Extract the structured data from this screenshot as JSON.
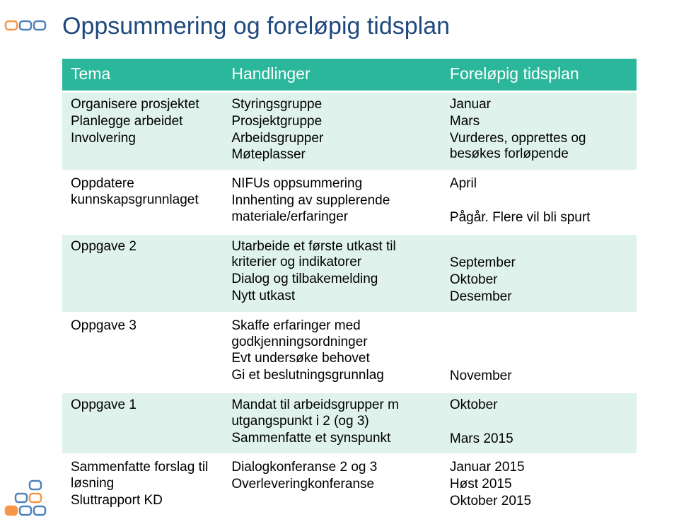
{
  "title": "Oppsummering og foreløpig tidsplan",
  "colors": {
    "title": "#1f497d",
    "header_bg": "#2bb79b",
    "header_fg": "#ffffff",
    "row_alt_bg": "#dff2ec",
    "row_bg": "#ffffff",
    "text": "#000000",
    "deco_orange": "#f79646",
    "deco_blue": "#4f81bd"
  },
  "headers": [
    "Tema",
    "Handlinger",
    "Foreløpig tidsplan"
  ],
  "rows": [
    {
      "alt": true,
      "tema": [
        "Organisere prosjektet",
        "Planlegge arbeidet",
        "Involvering"
      ],
      "handlinger": [
        "Styringsgruppe",
        "Prosjektgruppe",
        "Arbeidsgrupper",
        "Møteplasser"
      ],
      "tidsplan": [
        "Januar",
        "Mars",
        "Vurderes, opprettes og besøkes forløpende"
      ]
    },
    {
      "alt": false,
      "tema": [
        "Oppdatere kunnskapsgrunnlaget"
      ],
      "handlinger": [
        "NIFUs oppsummering",
        "Innhenting av supplerende materiale/erfaringer"
      ],
      "tidsplan": [
        "April",
        "",
        "Pågår. Flere vil bli spurt"
      ]
    },
    {
      "alt": true,
      "tema": [
        "Oppgave 2"
      ],
      "handlinger": [
        "Utarbeide et første utkast til kriterier og indikatorer",
        "Dialog og tilbakemelding",
        "Nytt utkast"
      ],
      "tidsplan": [
        "",
        "September",
        "Oktober",
        "Desember"
      ]
    },
    {
      "alt": false,
      "tema": [
        "Oppgave 3"
      ],
      "handlinger": [
        "Skaffe erfaringer med godkjenningsordninger",
        "Evt undersøke behovet",
        "Gi et beslutningsgrunnlag"
      ],
      "tidsplan": [
        "",
        "",
        "",
        "November"
      ]
    },
    {
      "alt": true,
      "tema": [
        "Oppgave 1"
      ],
      "handlinger": [
        "Mandat til  arbeidsgrupper m utgangspunkt i 2 (og 3)",
        "Sammenfatte et synspunkt"
      ],
      "tidsplan": [
        "Oktober",
        "",
        "Mars 2015"
      ]
    },
    {
      "alt": false,
      "tema": [
        "Sammenfatte forslag til løsning",
        "Sluttrapport KD"
      ],
      "handlinger": [
        "Dialogkonferanse 2 og 3",
        "Overleveringkonferanse"
      ],
      "tidsplan": [
        "Januar 2015",
        "Høst 2015",
        "Oktober 2015"
      ]
    }
  ]
}
